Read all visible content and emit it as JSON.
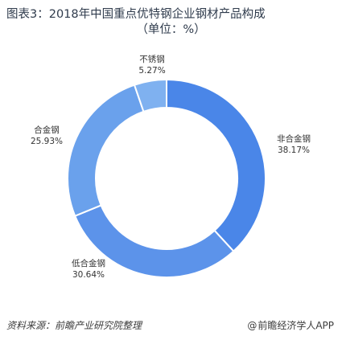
{
  "title": "图表3：2018年中国重点优特钢企业钢材产品构成",
  "subtitle": "（单位：%）",
  "chart_data": {
    "type": "pie",
    "donut": true,
    "categories": [
      "非合金钢",
      "低合金钢",
      "合金钢",
      "不锈钢"
    ],
    "values": [
      38.17,
      30.64,
      25.93,
      5.27
    ],
    "value_labels": [
      "38.17%",
      "30.64%",
      "25.93%",
      "5.27%"
    ],
    "colors": [
      "#4a86e8",
      "#5c93ea",
      "#6aa1ec",
      "#7fb1f0"
    ],
    "start_angle_deg": 0,
    "direction": "clockwise"
  },
  "footer": {
    "source": "资料来源：前瞻产业研究院整理",
    "brand": "前瞻经济学人APP",
    "brand_symbol": "@"
  }
}
